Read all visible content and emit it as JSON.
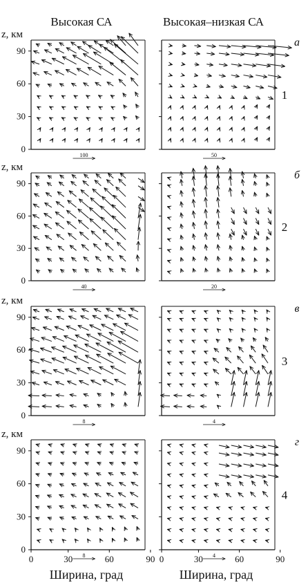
{
  "figure": {
    "columns": [
      "Высокая СА",
      "Высокая–низкая СА"
    ],
    "y_label": "z, км",
    "x_label": "Ширина, град",
    "panel_letters": [
      "а",
      "б",
      "в",
      "г"
    ],
    "row_numbers": [
      "1",
      "2",
      "3",
      "4"
    ],
    "y_ticks": [
      "0",
      "30",
      "60",
      "90"
    ],
    "x_ticks": [
      "0",
      "30",
      "60",
      "90"
    ],
    "reference_labels": [
      [
        "100",
        "50"
      ],
      [
        "40",
        "20"
      ],
      [
        "8",
        "4"
      ],
      [
        "8",
        "4"
      ]
    ]
  },
  "chart_data": {
    "type": "vector_field",
    "x_range": [
      0,
      90
    ],
    "y_range": [
      0,
      100
    ],
    "x_unit": "Ширина, град",
    "y_unit": "z, км",
    "grid_x": [
      9,
      18,
      27,
      36,
      45,
      54,
      63,
      72,
      81
    ],
    "grid_z": [
      8,
      18,
      28,
      38,
      48,
      58,
      68,
      78,
      88,
      95
    ],
    "rows": [
      {
        "row": "1",
        "letter": "а",
        "left_reference": 100,
        "right_reference": 50,
        "left_pattern": "r1L",
        "right_pattern": "r1R"
      },
      {
        "row": "2",
        "letter": "б",
        "left_reference": 40,
        "right_reference": 20,
        "left_pattern": "r2L",
        "right_pattern": "r2R"
      },
      {
        "row": "3",
        "letter": "в",
        "left_reference": 8,
        "right_reference": 4,
        "left_pattern": "r3L",
        "right_pattern": "r3R"
      },
      {
        "row": "4",
        "letter": "г",
        "left_reference": 8,
        "right_reference": 4,
        "left_pattern": "r4L",
        "right_pattern": "r4R"
      }
    ],
    "note": "vector components estimated from figure"
  }
}
